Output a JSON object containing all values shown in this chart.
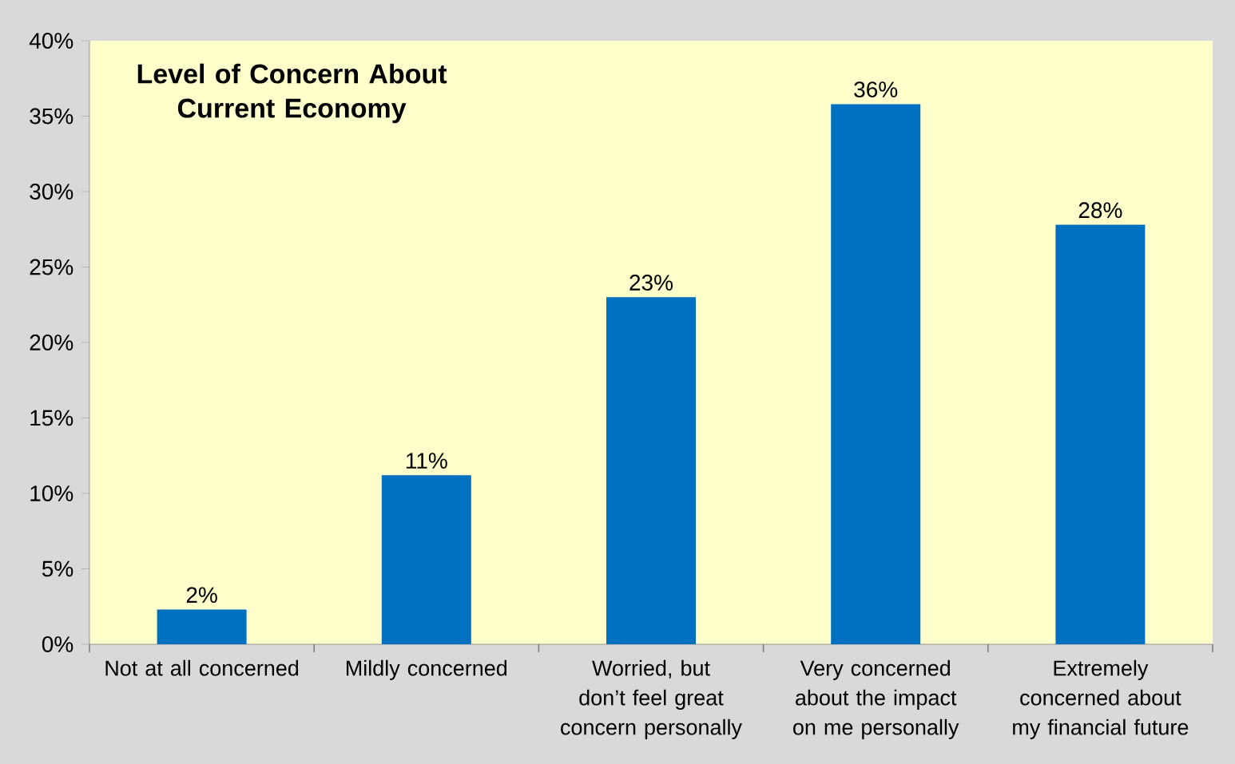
{
  "chart_data": {
    "type": "bar",
    "title": "Level of Concern About Current Economy",
    "categories": [
      "Not at all concerned",
      "Mildly concerned",
      "Worried, but don’t feel great concern personally",
      "Very concerned about the impact on me personally",
      "Extremely concerned about my financial future"
    ],
    "values": [
      2.3,
      11.2,
      23,
      35.8,
      27.8
    ],
    "value_labels": [
      "2%",
      "11%",
      "23%",
      "36%",
      "28%"
    ],
    "color": "#0070c0",
    "ylim": [
      0,
      40
    ],
    "yticks": [
      {
        "value": 0,
        "label": "0%"
      },
      {
        "value": 5,
        "label": "5%"
      },
      {
        "value": 10,
        "label": "10%"
      },
      {
        "value": 15,
        "label": "15%"
      },
      {
        "value": 20,
        "label": "20%"
      },
      {
        "value": 25,
        "label": "25%"
      },
      {
        "value": 30,
        "label": "30%"
      },
      {
        "value": 35,
        "label": "35%"
      },
      {
        "value": 40,
        "label": "40%"
      }
    ],
    "grid": false
  }
}
